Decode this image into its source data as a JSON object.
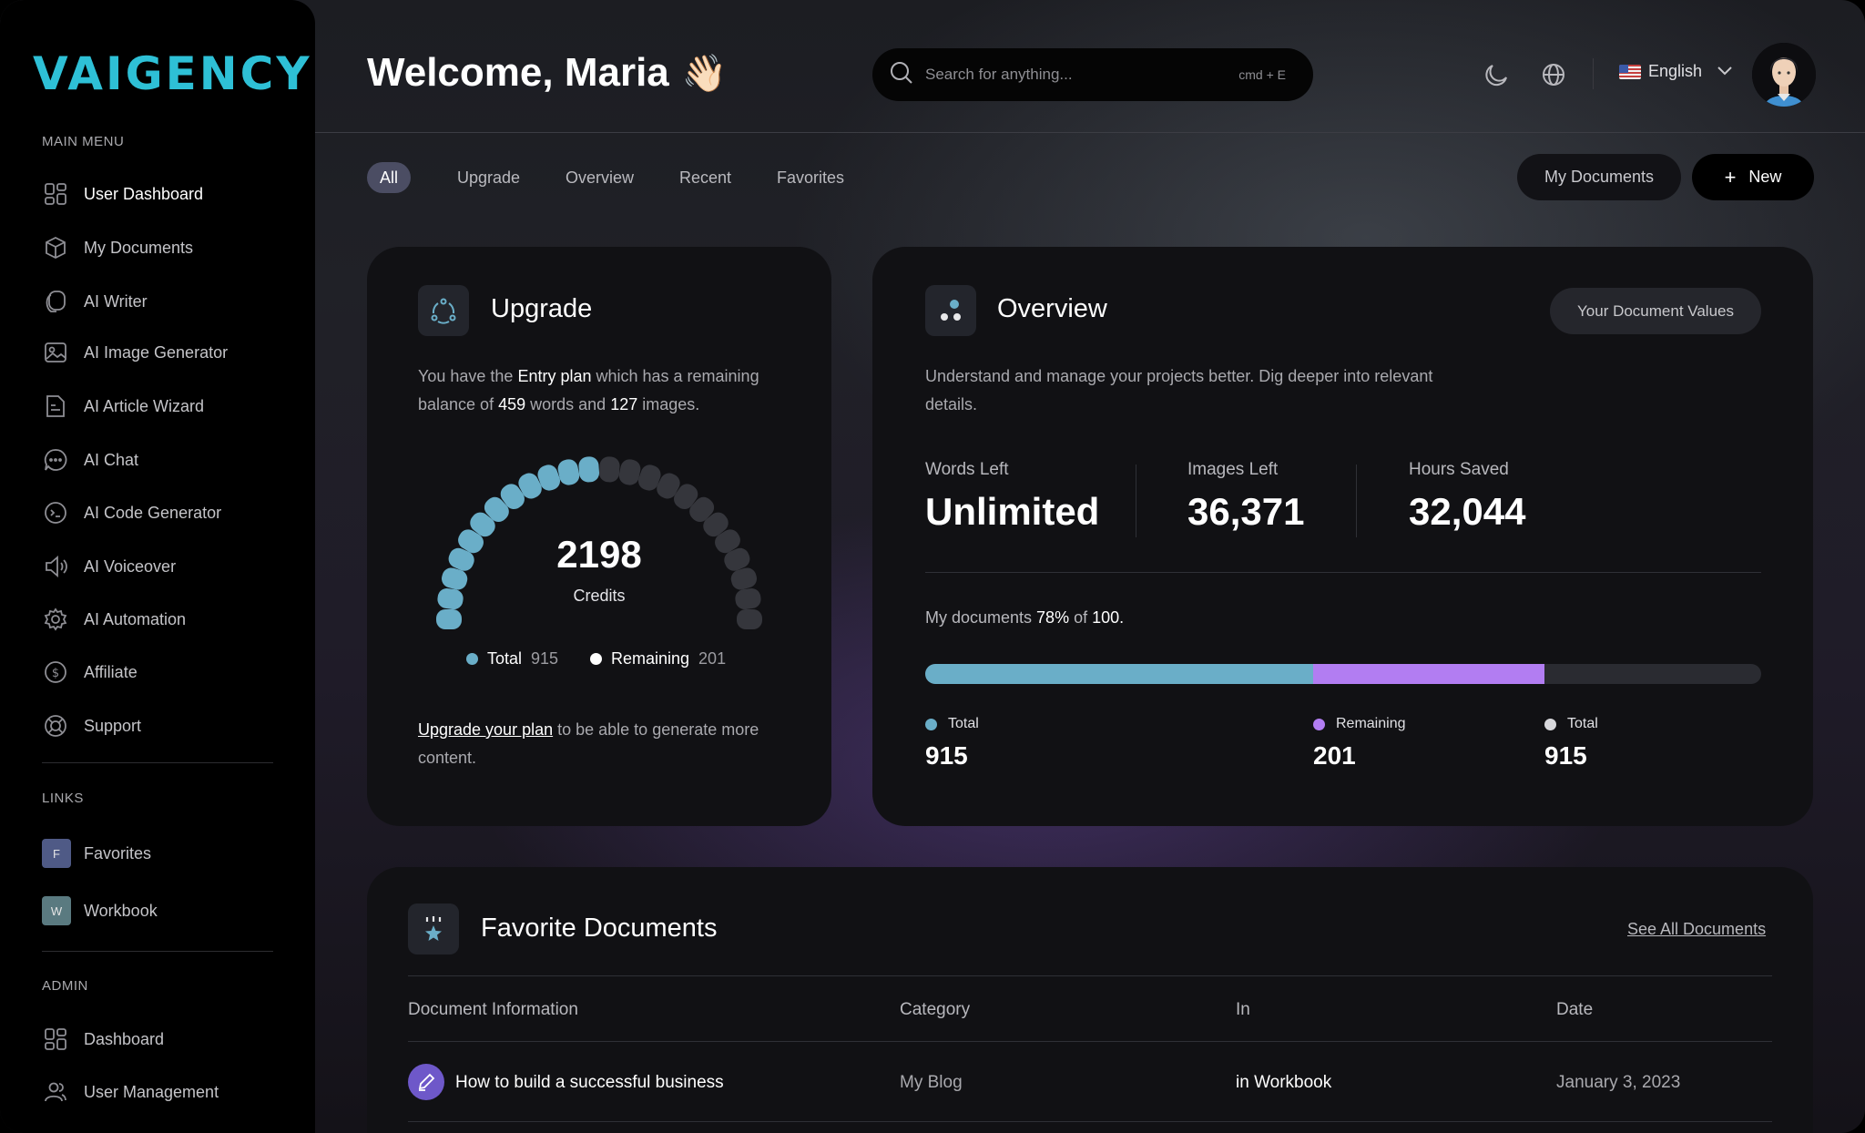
{
  "app": {
    "logo": "VAIGENCY"
  },
  "sidebar": {
    "main_label": "MAIN MENU",
    "main_items": [
      {
        "label": "User Dashboard",
        "icon": "dashboard-icon"
      },
      {
        "label": "My Documents",
        "icon": "cube-icon"
      },
      {
        "label": "AI Writer",
        "icon": "writer-icon"
      },
      {
        "label": "AI Image Generator",
        "icon": "image-icon"
      },
      {
        "label": "AI Article Wizard",
        "icon": "article-icon"
      },
      {
        "label": "AI Chat",
        "icon": "chat-icon"
      },
      {
        "label": "AI Code Generator",
        "icon": "code-icon"
      },
      {
        "label": "AI Voiceover",
        "icon": "speaker-icon"
      },
      {
        "label": "AI Automation",
        "icon": "gear-icon"
      },
      {
        "label": "Affiliate",
        "icon": "dollar-icon"
      },
      {
        "label": "Support",
        "icon": "lifebuoy-icon"
      }
    ],
    "links_label": "LINKS",
    "links": [
      {
        "badge": "F",
        "label": "Favorites",
        "color": "#4f5a86"
      },
      {
        "badge": "W",
        "label": "Workbook",
        "color": "#5a7a80"
      }
    ],
    "admin_label": "ADMIN",
    "admin_items": [
      {
        "label": "Dashboard",
        "icon": "dashboard-icon"
      },
      {
        "label": "User Management",
        "icon": "users-icon"
      }
    ]
  },
  "header": {
    "welcome": "Welcome, Maria",
    "wave": "👋🏻",
    "search_placeholder": "Search for anything...",
    "search_shortcut": "cmd + E",
    "language": "English"
  },
  "tabs": [
    "All",
    "Upgrade",
    "Overview",
    "Recent",
    "Favorites"
  ],
  "actions": {
    "my_documents": "My Documents",
    "new": "New"
  },
  "upgrade": {
    "title": "Upgrade",
    "text_1": "You have the ",
    "plan": "Entry plan",
    "text_2": " which has a remaining balance of ",
    "words": "459",
    "text_3": " words and ",
    "images": "127",
    "text_4": " images.",
    "credits": "2198",
    "credits_label": "Credits",
    "gauge_fraction": 0.48,
    "legend_total_label": "Total",
    "legend_total_value": "915",
    "legend_remaining_label": "Remaining",
    "legend_remaining_value": "201",
    "link_text": "Upgrade your plan",
    "link_suffix": " to be able to generate more content.",
    "accent": "#6aaec8"
  },
  "overview": {
    "title": "Overview",
    "pill": "Your Document Values",
    "description": "Understand and manage your projects better. Dig deeper into relevant details.",
    "stats": [
      {
        "label": "Words Left",
        "value": "Unlimited"
      },
      {
        "label": "Images Left",
        "value": "36,371"
      },
      {
        "label": "Hours Saved",
        "value": "32,044"
      }
    ],
    "docs_prefix": "My documents ",
    "docs_percent": "78%",
    "docs_mid": " of ",
    "docs_total": "100.",
    "bar": {
      "segments": [
        {
          "label": "Total",
          "value": "915",
          "fraction": 0.464,
          "color": "#6aaec8"
        },
        {
          "label": "Remaining",
          "value": "201",
          "fraction": 0.277,
          "color": "#b27df2"
        },
        {
          "label": "Total",
          "value": "915",
          "fraction": 0.259,
          "color": "#d8d8dc"
        }
      ]
    }
  },
  "favorites": {
    "title": "Favorite Documents",
    "see_all": "See All Documents",
    "columns": [
      "Document Information",
      "Category",
      "In",
      "Date"
    ],
    "rows": [
      {
        "name": "How to build a successful business",
        "category": "My Blog",
        "in": "in Workbook",
        "date": "January 3, 2023"
      }
    ]
  }
}
